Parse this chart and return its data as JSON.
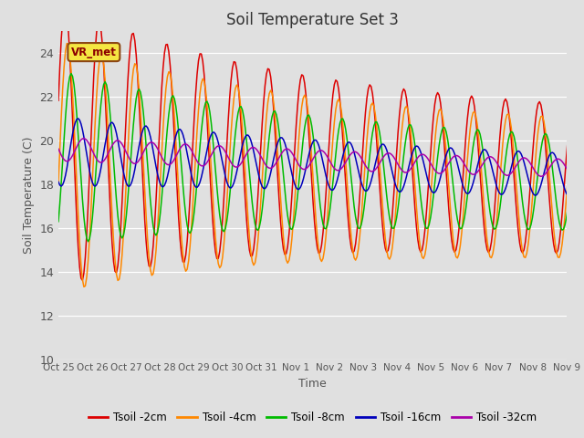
{
  "title": "Soil Temperature Set 3",
  "xlabel": "Time",
  "ylabel": "Soil Temperature (C)",
  "ylim": [
    10,
    25
  ],
  "yticks": [
    10,
    12,
    14,
    16,
    18,
    20,
    22,
    24
  ],
  "bg_color": "#e0e0e0",
  "line_colors": {
    "2cm": "#dd0000",
    "4cm": "#ff8800",
    "8cm": "#00bb00",
    "16cm": "#0000bb",
    "32cm": "#aa00aa"
  },
  "tick_labels": [
    "Oct 25",
    "Oct 26",
    "Oct 27",
    "Oct 28",
    "Oct 29",
    "Oct 30",
    "Oct 31",
    "Nov 1",
    "Nov 2",
    "Nov 3",
    "Nov 4",
    "Nov 5",
    "Nov 6",
    "Nov 7",
    "Nov 8",
    "Nov 9"
  ],
  "annotation_text": "VR_met",
  "legend_labels": [
    "Tsoil -2cm",
    "Tsoil -4cm",
    "Tsoil -8cm",
    "Tsoil -16cm",
    "Tsoil -32cm"
  ]
}
